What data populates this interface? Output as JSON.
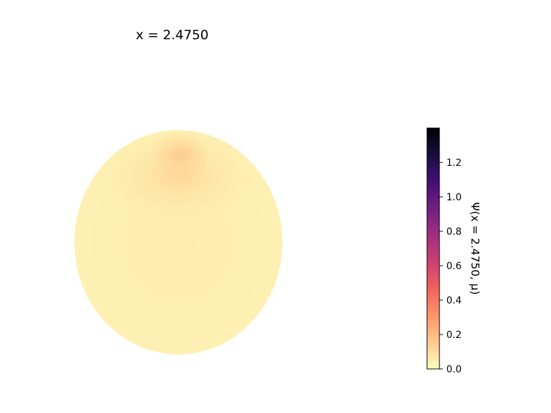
{
  "chart_data": {
    "type": "heatmap",
    "title": "x = 2.4750",
    "plot_shape": "disk",
    "fill_description_value_range": [
      0.0,
      0.15
    ],
    "field_values": {
      "outer": 0.04,
      "center": 0.05,
      "top": 0.12,
      "top_lobe": 0.15
    },
    "colorbar": {
      "label": "Ψ(x = 2.4750, μ)",
      "colormap": "magma_r",
      "vmin": 0.0,
      "vmax": 1.4,
      "ticks": [
        0.0,
        0.2,
        0.4,
        0.6,
        0.8,
        1.0,
        1.2
      ],
      "tick_labels": [
        "0.0",
        "0.2",
        "0.4",
        "0.6",
        "0.8",
        "1.0",
        "1.2"
      ]
    },
    "colors": {
      "cmap_stops": [
        "#fcfdbf",
        "#fec98d",
        "#fd9567",
        "#f1605d",
        "#cd4071",
        "#9e2f7f",
        "#721f81",
        "#440f76",
        "#180f3d",
        "#000004"
      ]
    }
  }
}
